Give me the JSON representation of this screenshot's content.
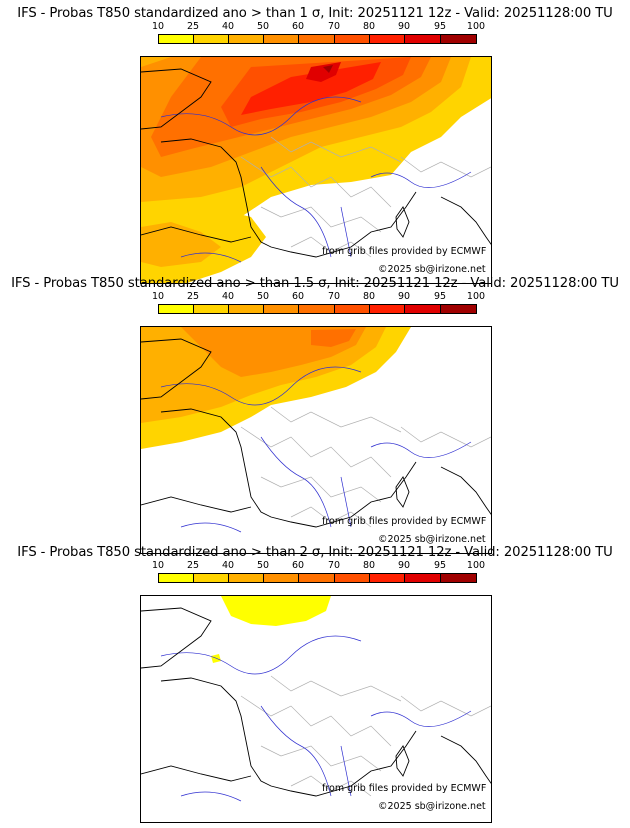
{
  "colorbar": {
    "ticks": [
      "10",
      "25",
      "40",
      "50",
      "60",
      "70",
      "80",
      "90",
      "95",
      "100"
    ],
    "colors": [
      "#ffff00",
      "#ffd400",
      "#ffb000",
      "#ff9000",
      "#ff7000",
      "#ff5000",
      "#ff2000",
      "#e00000",
      "#a00000"
    ]
  },
  "panels": [
    {
      "title": "IFS - Probas T850  standardized ano > than 1 σ, Init: 20251121 12z - Valid: 20251128:00 TU"
    },
    {
      "title": "IFS - Probas T850  standardized ano > than 1.5 σ, Init: 20251121 12z - Valid: 20251128:00 TU"
    },
    {
      "title": "IFS - Probas T850  standardized ano > than 2 σ, Init: 20251121 12z - Valid: 20251128:00 TU"
    }
  ],
  "credits": {
    "source": "from grib files provided by ECMWF",
    "copyright": "©2025 sb@irizone.net"
  }
}
